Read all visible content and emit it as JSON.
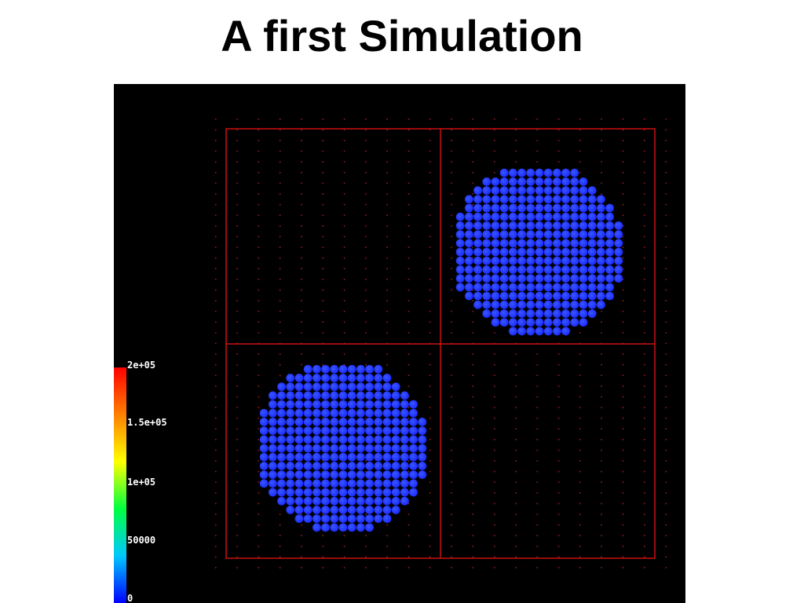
{
  "slide": {
    "title": "A first Simulation"
  },
  "simulation": {
    "background_color": "#000000",
    "grid_line_color": "#cc1111",
    "grid_dot_color": "#9a1a1a",
    "particle_color": "#1a2cff",
    "particle_highlight_color": "#3a55ff",
    "blobs": [
      {
        "name": "upper-right-particle-blob"
      },
      {
        "name": "lower-left-particle-blob"
      }
    ]
  },
  "colorbar": {
    "colors": [
      "#0000ff",
      "#00c8ff",
      "#00ff40",
      "#ffff00",
      "#ff8000",
      "#ff0000"
    ],
    "labels": [
      {
        "text": "2e+05"
      },
      {
        "text": "1.5e+05"
      },
      {
        "text": "1e+05"
      },
      {
        "text": "50000"
      },
      {
        "text": "0"
      }
    ]
  }
}
